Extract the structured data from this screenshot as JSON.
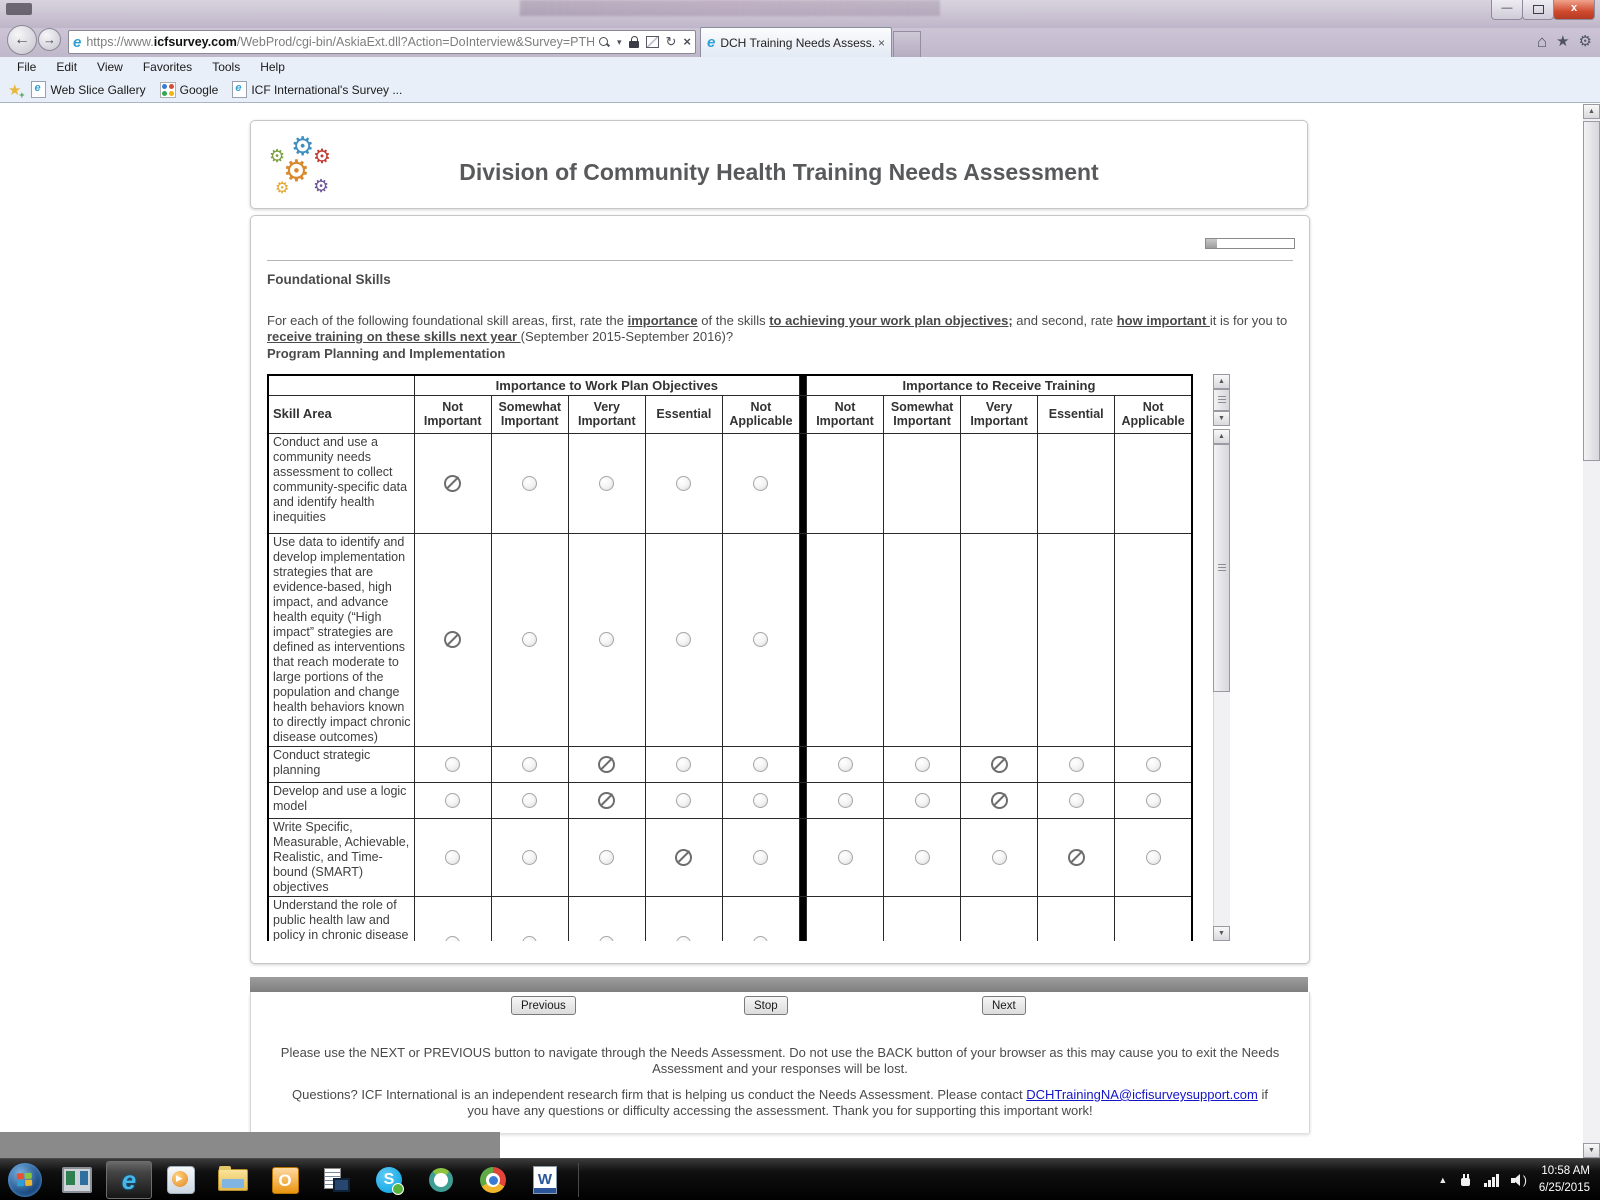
{
  "browser": {
    "url_scheme": "https://www.",
    "url_domain": "icfsurvey.com",
    "url_path": "/WebProd/cgi-bin/AskiaExt.dll?Action=DoInterview&Survey=PTHKFV",
    "tab_title": "DCH Training Needs Assess...",
    "menu": [
      "File",
      "Edit",
      "View",
      "Favorites",
      "Tools",
      "Help"
    ],
    "favorites": [
      {
        "label": "Web Slice Gallery",
        "icon": "ie-doc"
      },
      {
        "label": "Google",
        "icon": "google"
      },
      {
        "label": "ICF International's Survey ...",
        "icon": "ie-doc"
      }
    ],
    "window_buttons": {
      "minimize": "—",
      "close": "x"
    }
  },
  "survey": {
    "title": "Division of Community Health Training Needs Assessment",
    "progress_percent": 13,
    "section_heading": "Foundational Skills",
    "intro_segments": [
      {
        "t": "For each of the following foundational skill areas, first, rate the ",
        "b": false
      },
      {
        "t": "importance",
        "b": true
      },
      {
        "t": " of the skills ",
        "b": false
      },
      {
        "t": "to achieving your work plan objectives;",
        "b": true
      },
      {
        "t": " and second, rate ",
        "b": false
      },
      {
        "t": "how important ",
        "b": true
      },
      {
        "t": "it is for you to ",
        "b": false
      },
      {
        "t": "receive training on these skills next year ",
        "b": true
      },
      {
        "t": "(September 2015-September 2016)?",
        "b": false
      }
    ],
    "subsection_heading": "Program Planning and Implementation",
    "table": {
      "skill_area_header": "Skill Area",
      "group_headers": [
        "Importance to Work Plan Objectives",
        "Importance to Receive Training"
      ],
      "rating_columns": [
        "Not Important",
        "Somewhat Important",
        "Very Important",
        "Essential",
        "Not Applicable"
      ],
      "rows": [
        {
          "skill": "Conduct and use a community needs assessment to collect community-specific data and identify health inequities",
          "work_plan": {
            "has_radios": true,
            "selected": "Not Important"
          },
          "training": {
            "has_radios": false,
            "selected": null
          }
        },
        {
          "skill": "Use data to identify and develop implementation strategies that are evidence-based, high impact, and advance health equity (“High impact” strategies are defined as interventions that reach moderate to large portions of the population and change health behaviors known to directly impact chronic disease outcomes)",
          "work_plan": {
            "has_radios": true,
            "selected": "Not Important"
          },
          "training": {
            "has_radios": false,
            "selected": null
          }
        },
        {
          "skill": "Conduct strategic planning",
          "work_plan": {
            "has_radios": true,
            "selected": "Very Important"
          },
          "training": {
            "has_radios": true,
            "selected": "Very Important"
          }
        },
        {
          "skill": "Develop and use a logic model",
          "work_plan": {
            "has_radios": true,
            "selected": "Very Important"
          },
          "training": {
            "has_radios": true,
            "selected": "Very Important"
          }
        },
        {
          "skill": "Write Specific, Measurable, Achievable, Realistic, and Time-bound (SMART) objectives",
          "work_plan": {
            "has_radios": true,
            "selected": "Essential"
          },
          "training": {
            "has_radios": true,
            "selected": "Essential"
          }
        },
        {
          "skill": "Understand the role of public health law and policy in chronic disease",
          "work_plan": {
            "has_radios": true,
            "selected": null
          },
          "training": {
            "has_radios": false,
            "selected": null
          }
        }
      ]
    },
    "nav_buttons": {
      "previous": "Previous",
      "stop": "Stop",
      "next": "Next"
    },
    "footer_note": "Please use the NEXT or PREVIOUS button to navigate through the Needs Assessment. Do not use the BACK button of your browser as this may cause you to exit the Needs Assessment and your responses will be lost.",
    "contact": {
      "pre": "Questions? ICF International is an independent research firm that is helping us conduct the Needs Assessment. Please contact ",
      "link": "DCHTrainingNA@icfisurveysupport.com",
      "post": " if you have any questions or difficulty accessing the assessment. Thank you for supporting this important work!"
    }
  },
  "taskbar": {
    "time": "10:58 AM",
    "date": "6/25/2015"
  },
  "icons": {
    "address_bar": [
      "search",
      "dropdown",
      "lock",
      "compatibility-view",
      "refresh",
      "stop"
    ],
    "browser_corner": [
      "home",
      "favorites-star",
      "settings-gear"
    ],
    "taskbar_apps": [
      "start",
      "app-switcher",
      "internet-explorer",
      "media-player",
      "file-explorer",
      "outlook",
      "software-center",
      "skype",
      "connect",
      "chrome",
      "word"
    ],
    "tray": [
      "expand",
      "power-plug",
      "network-signal",
      "volume"
    ]
  },
  "colors": {
    "link": "#1414c8",
    "title_text": "#58595b",
    "selected_mark": "#6e6e6e",
    "group_divider": "#000000"
  }
}
